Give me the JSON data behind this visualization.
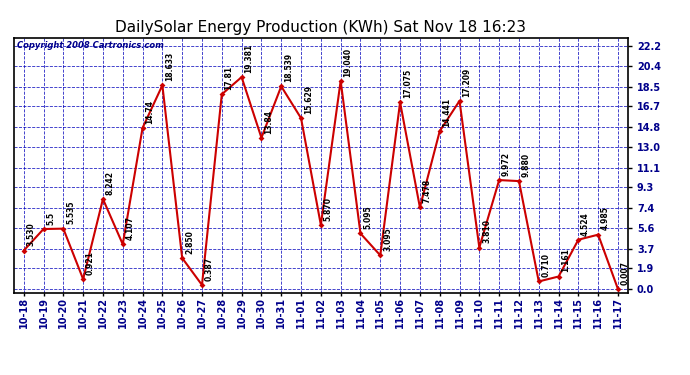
{
  "title": "DailySolar Energy Production (KWh) Sat Nov 18 16:23",
  "copyright": "Copyright 2008 Cartronics.com",
  "categories": [
    "10-18",
    "10-19",
    "10-20",
    "10-21",
    "10-22",
    "10-23",
    "10-24",
    "10-25",
    "10-26",
    "10-27",
    "10-28",
    "10-29",
    "10-30",
    "10-31",
    "11-01",
    "11-02",
    "11-03",
    "11-04",
    "11-05",
    "11-06",
    "11-07",
    "11-08",
    "11-09",
    "11-10",
    "11-11",
    "11-12",
    "11-13",
    "11-14",
    "11-15",
    "11-16",
    "11-17"
  ],
  "values": [
    3.53,
    5.5,
    5.535,
    0.921,
    8.242,
    4.107,
    14.74,
    18.633,
    2.85,
    0.387,
    17.81,
    19.381,
    13.84,
    18.539,
    15.629,
    5.87,
    19.04,
    5.095,
    3.095,
    17.075,
    7.478,
    14.441,
    17.209,
    3.81,
    9.972,
    9.88,
    0.71,
    1.161,
    4.524,
    4.985,
    0.007
  ],
  "annotations": [
    "3.530",
    "5.5",
    "5.535",
    "0.921",
    "8.242",
    "4.107",
    "14.74",
    "18.633",
    "2.850",
    "0.387",
    "17.81",
    "19.381",
    "13.84",
    "18.539",
    "15.629",
    "5.870",
    "19.040",
    "5.095",
    "3.095",
    "17.075",
    "7.478",
    "14.441",
    "17.209",
    "3.810",
    "9.972",
    "9.880",
    "0.710",
    "1.161",
    "4.524",
    "4.985",
    "0.007"
  ],
  "line_color": "#cc0000",
  "marker_color": "#cc0000",
  "background_color": "#ffffff",
  "grid_color": "#0000bb",
  "title_color": "#000000",
  "copyright_color": "#00008b",
  "tick_color": "#00008b",
  "ylabel_values": [
    0.0,
    1.9,
    3.7,
    5.6,
    7.4,
    9.3,
    11.1,
    13.0,
    14.8,
    16.7,
    18.5,
    20.4,
    22.2
  ],
  "ylim": [
    -0.3,
    23.0
  ],
  "title_fontsize": 11,
  "tick_fontsize": 7,
  "annot_fontsize": 5.5,
  "copyright_fontsize": 6
}
